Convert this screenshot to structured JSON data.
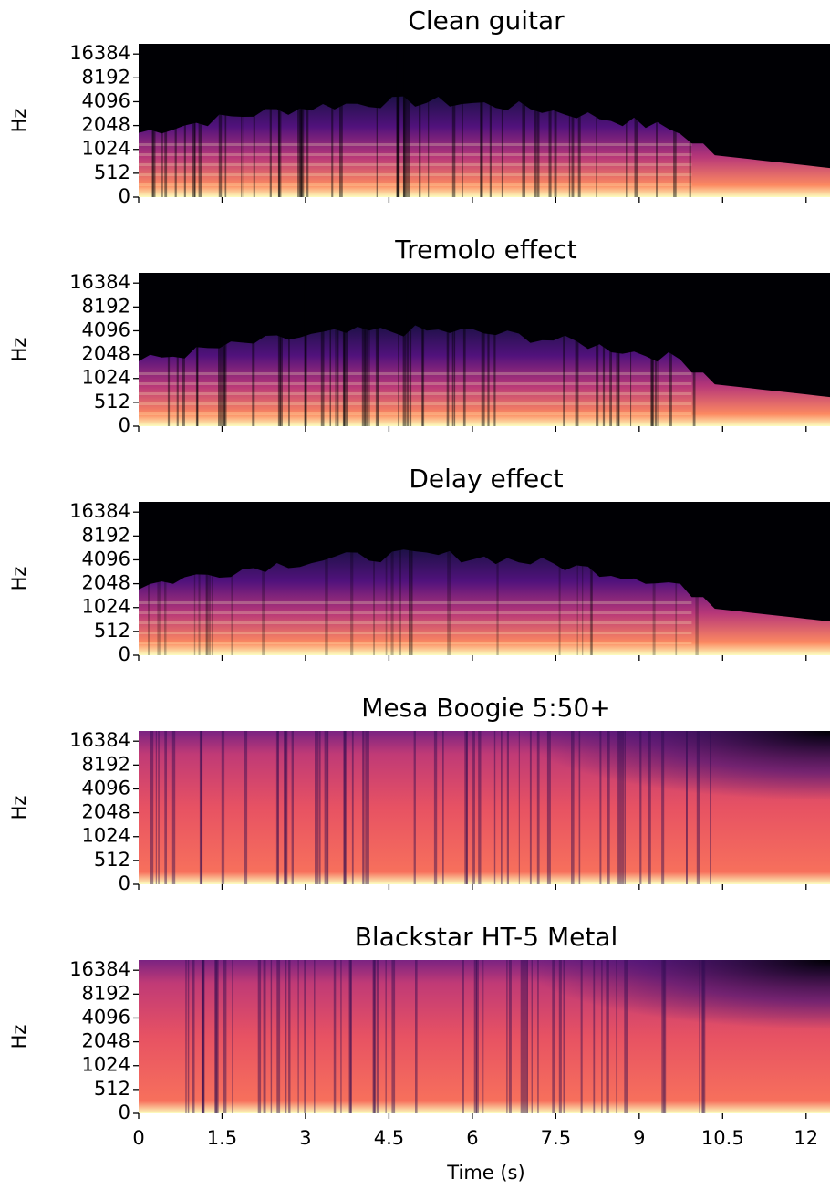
{
  "chart_data": [
    {
      "type": "spectrogram",
      "title": "Clean guitar",
      "ylabel": "Hz",
      "yscale": "symlog",
      "base": 2,
      "linthresh": 512,
      "ylim": [
        0,
        22050
      ],
      "yticks": [
        0,
        512,
        1024,
        2048,
        4096,
        8192,
        16384
      ],
      "xlim": [
        0,
        12.43
      ],
      "xticks": [
        0,
        1.5,
        3,
        4.5,
        6,
        7.5,
        9,
        10.5,
        12
      ]
    },
    {
      "type": "spectrogram",
      "title": "Tremolo effect",
      "ylabel": "Hz",
      "yscale": "symlog",
      "base": 2,
      "linthresh": 512,
      "ylim": [
        0,
        22050
      ],
      "yticks": [
        0,
        512,
        1024,
        2048,
        4096,
        8192,
        16384
      ],
      "xlim": [
        0,
        12.43
      ],
      "xticks": [
        0,
        1.5,
        3,
        4.5,
        6,
        7.5,
        9,
        10.5,
        12
      ]
    },
    {
      "type": "spectrogram",
      "title": "Delay effect",
      "ylabel": "Hz",
      "yscale": "symlog",
      "base": 2,
      "linthresh": 512,
      "ylim": [
        0,
        22050
      ],
      "yticks": [
        0,
        512,
        1024,
        2048,
        4096,
        8192,
        16384
      ],
      "xlim": [
        0,
        12.43
      ],
      "xticks": [
        0,
        1.5,
        3,
        4.5,
        6,
        7.5,
        9,
        10.5,
        12
      ]
    },
    {
      "type": "spectrogram",
      "title": "Mesa Boogie 5:50+",
      "ylabel": "Hz",
      "yscale": "symlog",
      "base": 2,
      "linthresh": 512,
      "ylim": [
        0,
        22050
      ],
      "yticks": [
        0,
        512,
        1024,
        2048,
        4096,
        8192,
        16384
      ],
      "xlim": [
        0,
        12.43
      ],
      "xticks": [
        0,
        1.5,
        3,
        4.5,
        6,
        7.5,
        9,
        10.5,
        12
      ]
    },
    {
      "type": "spectrogram",
      "title": "Blackstar HT-5 Metal",
      "ylabel": "Hz",
      "xlabel": "Time (s)",
      "yscale": "symlog",
      "base": 2,
      "linthresh": 512,
      "ylim": [
        0,
        22050
      ],
      "yticks": [
        0,
        512,
        1024,
        2048,
        4096,
        8192,
        16384
      ],
      "xlim": [
        0,
        12.43
      ],
      "xticks": [
        0,
        1.5,
        3,
        4.5,
        6,
        7.5,
        9,
        10.5,
        12
      ]
    }
  ]
}
